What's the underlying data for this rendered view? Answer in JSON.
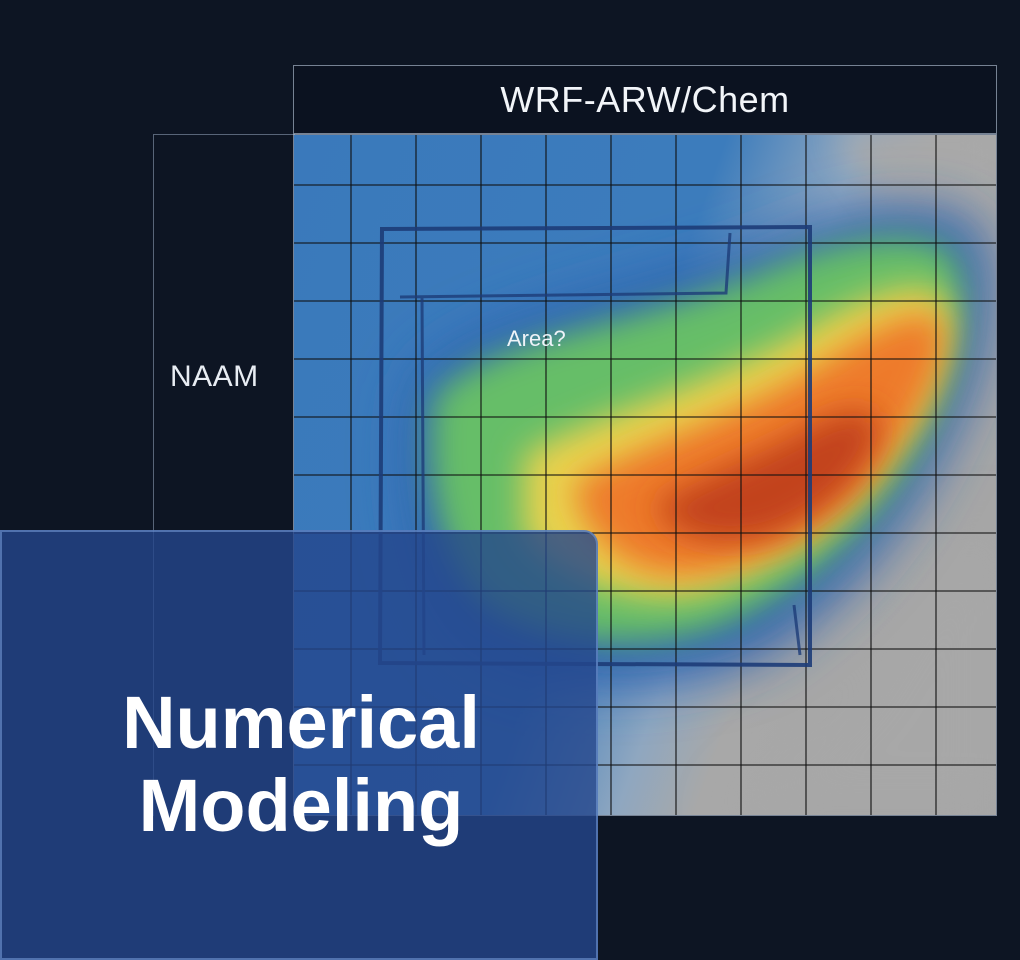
{
  "labels": {
    "outer_domain": "NAAM",
    "model": "WRF-ARW/Chem",
    "area_question": "Area?"
  },
  "title_card": {
    "line1": "Numerical",
    "line2": "Modeling"
  },
  "colors": {
    "background": "#0d1523",
    "grid_line": "#111111",
    "field_blue": "#3b78b8",
    "field_gray": "#a6a6a6",
    "card": "#24468c"
  }
}
